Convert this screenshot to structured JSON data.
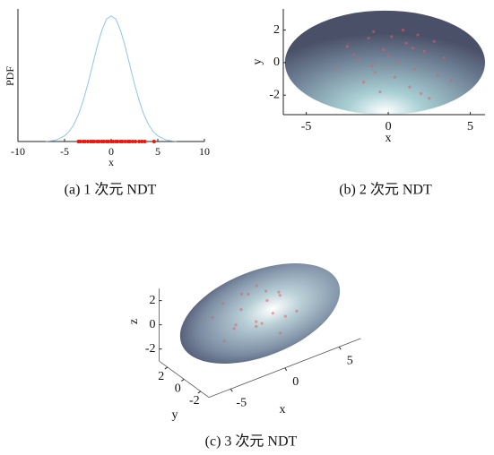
{
  "chart_data": [
    {
      "type": "line",
      "caption": "(a) 1 次元 NDT",
      "xlabel": "x",
      "ylabel": "PDF",
      "xlim": [
        -10,
        10
      ],
      "ylim": [
        0,
        0.21
      ],
      "xticks": [
        -10,
        -5,
        0,
        5,
        10
      ],
      "series": [
        {
          "color": "#8fc7e3",
          "x": [
            -7,
            -6.5,
            -6,
            -5.5,
            -5,
            -4.5,
            -4,
            -3.5,
            -3,
            -2.5,
            -2,
            -1.5,
            -1,
            -0.5,
            0,
            0.5,
            1,
            1.5,
            2,
            2.5,
            3,
            3.5,
            4,
            4.5,
            5,
            5.5,
            6,
            6.5,
            7
          ],
          "values": [
            0.0004,
            0.001,
            0.002,
            0.005,
            0.009,
            0.016,
            0.027,
            0.043,
            0.065,
            0.091,
            0.121,
            0.151,
            0.176,
            0.194,
            0.199,
            0.194,
            0.176,
            0.151,
            0.121,
            0.091,
            0.065,
            0.043,
            0.027,
            0.016,
            0.009,
            0.005,
            0.002,
            0.001,
            0.0004
          ]
        },
        {
          "type": "scatter",
          "color": "#e8180c",
          "x": [
            -3.5,
            -3.3,
            -3,
            -2.8,
            -2.5,
            -2.2,
            -2,
            -1.8,
            -1.5,
            -1.3,
            -1,
            -0.8,
            -0.5,
            -0.3,
            0,
            0.2,
            0.5,
            0.7,
            1,
            1.2,
            1.5,
            1.8,
            2,
            2.3,
            2.6,
            3,
            3.3,
            3.6,
            4.6
          ],
          "values": [
            0,
            0,
            0,
            0,
            0,
            0,
            0,
            0,
            0,
            0,
            0,
            0,
            0,
            0,
            0,
            0,
            0,
            0,
            0,
            0,
            0,
            0,
            0,
            0,
            0,
            0,
            0,
            0,
            0
          ]
        }
      ]
    },
    {
      "type": "ellipse",
      "caption": "(b) 2 次元 NDT",
      "xlabel": "x",
      "ylabel": "y",
      "xlim": [
        -6.4,
        5.9
      ],
      "ylim": [
        -3.2,
        3.3
      ],
      "xticks": [
        -5,
        0,
        5
      ],
      "yticks": [
        -2,
        0,
        2
      ],
      "ellipse": {
        "center": [
          -0.2,
          0
        ],
        "radii": [
          6.1,
          3.2
        ]
      },
      "points": {
        "color": "#d9606a",
        "x": [
          -2.5,
          -1.8,
          -1.2,
          -0.8,
          -0.3,
          0.2,
          0.6,
          1.1,
          1.6,
          2.2,
          2.8,
          3.4,
          -1.5,
          -0.5,
          0.4,
          1.3,
          2.0,
          -2.1,
          -0.9,
          0.9,
          1.8,
          3.0,
          -3.2,
          0.0,
          2.5,
          -1.0,
          1.5,
          3.8
        ],
        "y": [
          1.0,
          0.2,
          1.5,
          -0.6,
          0.8,
          1.6,
          0.1,
          1.2,
          -0.4,
          0.7,
          1.3,
          0.3,
          -1.2,
          -1.8,
          -0.9,
          -1.5,
          -1.9,
          0.5,
          1.9,
          2.0,
          1.7,
          -0.8,
          -0.3,
          0.4,
          -2.2,
          -0.2,
          0.9,
          -1.1
        ]
      }
    },
    {
      "type": "ellipsoid",
      "caption": "(c) 3 次元 NDT",
      "xlabel": "x",
      "ylabel": "y",
      "zlabel": "z",
      "xlim": [
        -7,
        7
      ],
      "ylim": [
        -3,
        3
      ],
      "zlim": [
        -3,
        3
      ],
      "xticks": [
        -5,
        0,
        5
      ],
      "yticks": [
        -2,
        0,
        2
      ],
      "zticks": [
        -2,
        0,
        2
      ],
      "ellipsoid": {
        "center": [
          0,
          0,
          0
        ],
        "radii": [
          7,
          3,
          3
        ]
      },
      "points": {
        "color": "#d9606a",
        "x": [
          -4,
          -3,
          -2.5,
          -2,
          -1.5,
          -1,
          -0.5,
          0,
          0.5,
          1,
          1.5,
          2,
          2.5,
          3,
          -3.5,
          -1.2,
          0.3,
          1.8,
          -2.2,
          0.8
        ],
        "y": [
          0.5,
          -0.8,
          1.2,
          0.3,
          -1.5,
          0.9,
          -0.2,
          1.4,
          -0.9,
          0.6,
          -1.1,
          0.2,
          1.0,
          -0.5,
          -0.3,
          -1.8,
          0.8,
          1.5,
          -0.6,
          -1.4
        ],
        "z": [
          0.8,
          0.2,
          1.1,
          -0.4,
          0.6,
          1.5,
          -0.8,
          0.9,
          0.3,
          1.2,
          -0.2,
          0.7,
          0.4,
          -0.6,
          -0.9,
          0.5,
          1.8,
          -0.3,
          1.4,
          -1.2
        ]
      }
    }
  ]
}
